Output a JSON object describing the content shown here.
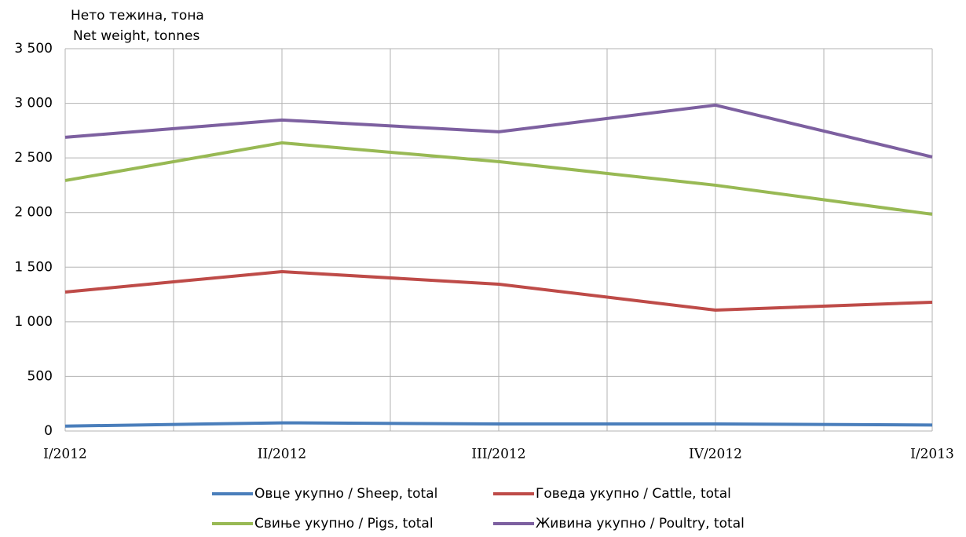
{
  "chart_data": {
    "type": "line",
    "y_label": [
      "Нето тежина, тона",
      "Net weight, tonnes"
    ],
    "categories": [
      "I/2012",
      "II/2012",
      "III/2012",
      "IV/2012",
      "I/2013"
    ],
    "series": [
      {
        "name": "Овце укупно / Sheep, total",
        "color": "#4a7ebb",
        "values": [
          45,
          75,
          65,
          65,
          55
        ]
      },
      {
        "name": "Говеда укупно / Cattle, total",
        "color": "#be4b48",
        "values": [
          1272,
          1459,
          1344,
          1107,
          1179
        ]
      },
      {
        "name": "Свиње укупно / Pigs, total",
        "color": "#98b954",
        "values": [
          2293,
          2638,
          2466,
          2250,
          1984
        ]
      },
      {
        "name": "Живина укупно / Poultry, total",
        "color": "#7d60a0",
        "values": [
          2689,
          2847,
          2739,
          2983,
          2509
        ]
      }
    ],
    "ylim": [
      0,
      3500
    ],
    "yticks": [
      0,
      500,
      {
        "value": 1000,
        "label": "1 000"
      },
      {
        "value": 1500,
        "label": "1 500"
      },
      {
        "value": 2000,
        "label": "2 000"
      },
      {
        "value": 2500,
        "label": "2 500"
      },
      {
        "value": 3000,
        "label": "3 000"
      },
      {
        "value": 3500,
        "label": "3 500"
      }
    ],
    "grid": true
  }
}
